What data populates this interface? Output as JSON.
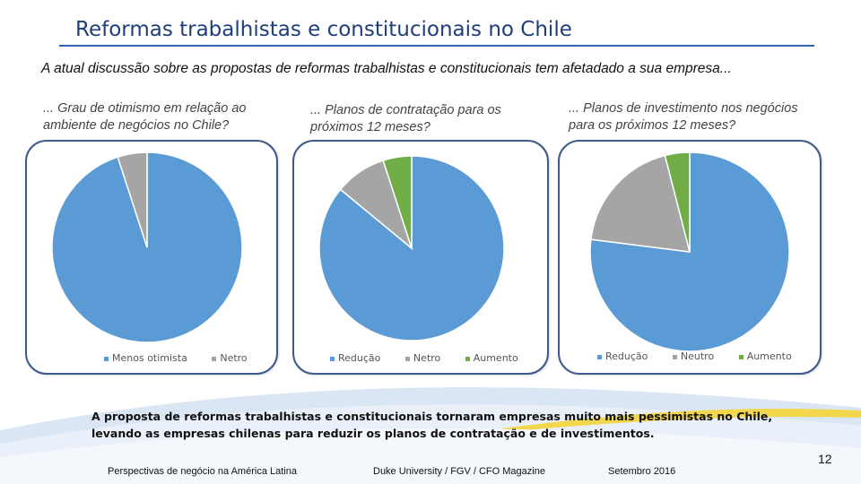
{
  "title": "Reformas trabalhistas e constitucionais no Chile",
  "subtitle": "A atual discussão sobre as propostas de reformas trabalhistas e constitucionais tem afetadado a sua empresa...",
  "panels": [
    {
      "question": "... Grau de otimismo em relação ao ambiente de negócios no Chile?"
    },
    {
      "question": "... Planos de contratação para os próximos 12 meses?"
    },
    {
      "question": "... Planos de investimento nos negócios para os próximos 12 meses?"
    }
  ],
  "chart_data": [
    {
      "type": "pie",
      "title": "",
      "labels": [
        "Menos otimista",
        "Netro"
      ],
      "values": [
        95,
        5
      ],
      "colors": [
        "#5b9bd5",
        "#a5a5a5"
      ],
      "legend": "bottom"
    },
    {
      "type": "pie",
      "title": "",
      "labels": [
        "Redução",
        "Netro",
        "Aumento"
      ],
      "values": [
        86,
        9,
        5
      ],
      "colors": [
        "#5b9bd5",
        "#a5a5a5",
        "#70ad47"
      ],
      "legend": "bottom"
    },
    {
      "type": "pie",
      "title": "",
      "labels": [
        "Redução",
        "Neutro",
        "Aumento"
      ],
      "values": [
        77,
        19,
        4
      ],
      "colors": [
        "#5b9bd5",
        "#a5a5a5",
        "#70ad47"
      ],
      "legend": "bottom"
    }
  ],
  "conclusion": "A proposta de reformas trabalhistas e constitucionais tornaram empresas muito mais pessimistas no Chile, levando as empresas chilenas para reduzir os planos de contratação e de investimentos.",
  "footer": {
    "left": "Perspectivas de negócio na América Latina",
    "center": "Duke University / FGV / CFO Magazine",
    "right": "Setembro 2016",
    "page": "12"
  }
}
